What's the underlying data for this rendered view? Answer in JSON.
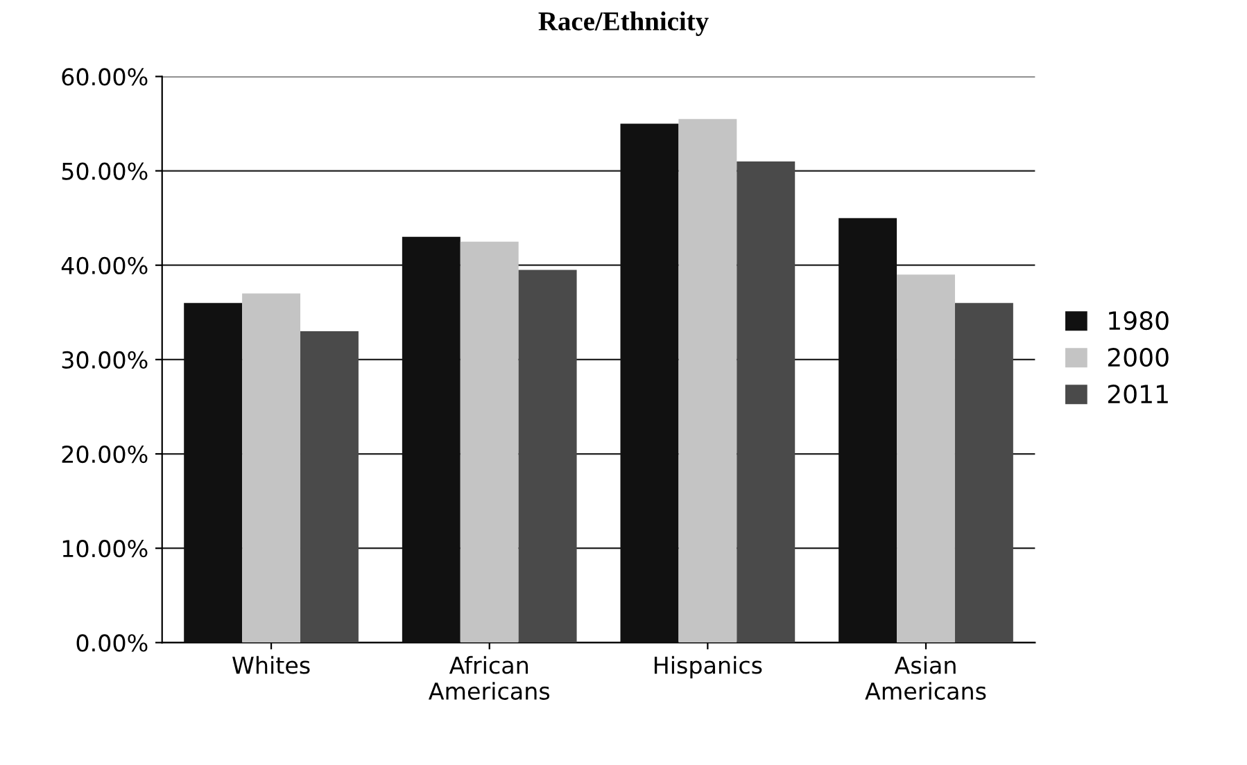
{
  "chart_data": {
    "type": "bar",
    "title": "Race/Ethnicity",
    "categories": [
      "Whites",
      "African\nAmericans",
      "Hispanics",
      "Asian\nAmericans"
    ],
    "series": [
      {
        "name": "1980",
        "color": "#111111",
        "values": [
          36,
          43,
          55,
          45
        ]
      },
      {
        "name": "2000",
        "color": "#c4c4c4",
        "values": [
          37,
          42.5,
          55.5,
          39
        ]
      },
      {
        "name": "2011",
        "color": "#4a4a4a",
        "values": [
          33,
          39.5,
          51,
          36
        ]
      }
    ],
    "ylim": [
      0,
      60
    ],
    "yticks": [
      {
        "value": 0,
        "label": "0.00%"
      },
      {
        "value": 10,
        "label": "10.00%"
      },
      {
        "value": 20,
        "label": "20.00%"
      },
      {
        "value": 30,
        "label": "30.00%"
      },
      {
        "value": 40,
        "label": "40.00%"
      },
      {
        "value": 50,
        "label": "50.00%"
      },
      {
        "value": 60,
        "label": "60.00%"
      }
    ],
    "grid": "y",
    "legend": "right"
  }
}
